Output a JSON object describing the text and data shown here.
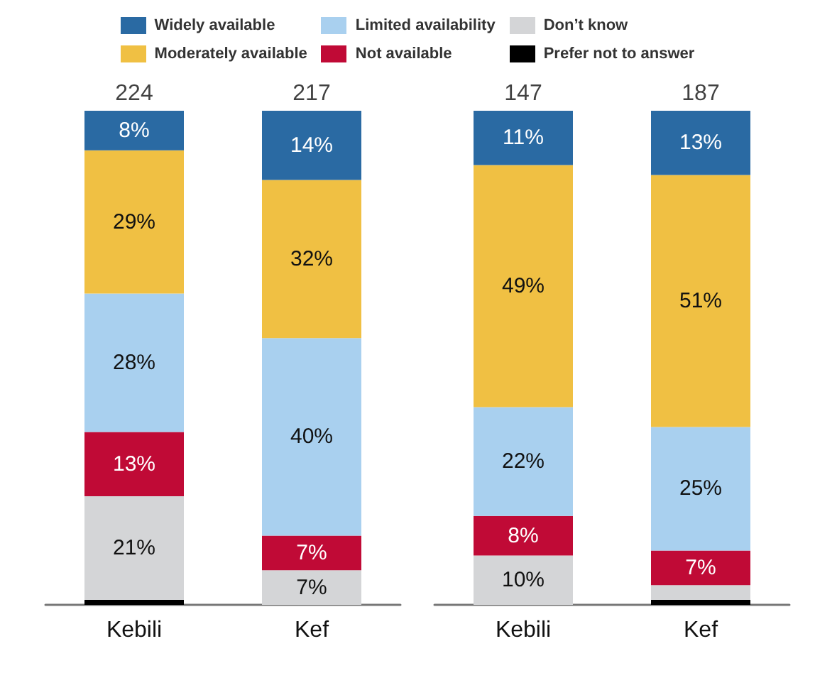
{
  "chart_data": [
    {
      "type": "bar",
      "stacked": true,
      "legend": "top",
      "categories": [
        "Kebili",
        "Kef"
      ],
      "annotations": [
        "224",
        "217"
      ],
      "series": [
        {
          "name": "Prefer not to answer",
          "color": "#000000",
          "values": [
            1,
            0
          ],
          "value_labels": [
            null,
            null
          ]
        },
        {
          "name": "Don’t know",
          "color": "#d4d5d7",
          "values": [
            21,
            7
          ],
          "value_labels": [
            "21%",
            "7%"
          ]
        },
        {
          "name": "Not available",
          "color": "#c00a36",
          "values": [
            13,
            7
          ],
          "value_labels": [
            "13%",
            "7%"
          ]
        },
        {
          "name": "Limited availability",
          "color": "#a9d0ef",
          "values": [
            28,
            40
          ],
          "value_labels": [
            "28%",
            "40%"
          ]
        },
        {
          "name": "Moderately available",
          "color": "#f0c043",
          "values": [
            29,
            32
          ],
          "value_labels": [
            "29%",
            "32%"
          ]
        },
        {
          "name": "Widely available",
          "color": "#2a6aa3",
          "values": [
            8,
            14
          ],
          "value_labels": [
            "8%",
            "14%"
          ]
        }
      ]
    },
    {
      "type": "bar",
      "stacked": true,
      "categories": [
        "Kebili",
        "Kef"
      ],
      "annotations": [
        "147",
        "187"
      ],
      "series": [
        {
          "color": "#000000",
          "values": [
            0,
            1
          ],
          "value_labels": [
            null,
            null
          ]
        },
        {
          "color": "#d4d5d7",
          "values": [
            10,
            3
          ],
          "value_labels": [
            "10%",
            null
          ]
        },
        {
          "color": "#c00a36",
          "values": [
            8,
            7
          ],
          "value_labels": [
            "8%",
            "7%"
          ]
        },
        {
          "color": "#a9d0ef",
          "values": [
            22,
            25
          ],
          "value_labels": [
            "22%",
            "25%"
          ]
        },
        {
          "color": "#f0c043",
          "values": [
            49,
            51
          ],
          "value_labels": [
            "49%",
            "51%"
          ]
        },
        {
          "color": "#2a6aa3",
          "values": [
            11,
            13
          ],
          "value_labels": [
            "11%",
            "13%"
          ]
        }
      ]
    }
  ]
}
